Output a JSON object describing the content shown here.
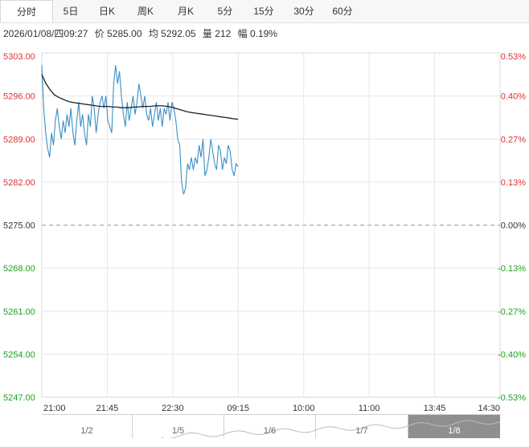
{
  "tabs": [
    {
      "label": "分时",
      "active": true
    },
    {
      "label": "5日",
      "active": false
    },
    {
      "label": "日K",
      "active": false
    },
    {
      "label": "周K",
      "active": false
    },
    {
      "label": "月K",
      "active": false
    },
    {
      "label": "5分",
      "active": false
    },
    {
      "label": "15分",
      "active": false
    },
    {
      "label": "30分",
      "active": false
    },
    {
      "label": "60分",
      "active": false
    }
  ],
  "info": {
    "datetime": "2026/01/08/四09:27",
    "price": "价 5285.00",
    "avg": "均 5292.05",
    "volume": "量 212",
    "change": "幅 0.19%"
  },
  "colors": {
    "price_line": "#3a8fc6",
    "avg_line": "#222222",
    "up": "#e03030",
    "down": "#1fa01f",
    "base": "#333333",
    "grid": "#e6e6e6"
  },
  "chart_data": {
    "type": "line",
    "reference_price": 5275.0,
    "ylim": [
      5247.0,
      5303.0
    ],
    "y_ticks": [
      "5303.00",
      "5296.00",
      "5289.00",
      "5282.00",
      "5275.00",
      "5268.00",
      "5261.00",
      "5254.00",
      "5247.00"
    ],
    "pct_ticks": [
      "0.53%",
      "0.40%",
      "0.27%",
      "0.13%",
      "0.00%",
      "-0.13%",
      "-0.27%",
      "-0.40%",
      "-0.53%"
    ],
    "x_ticks": [
      "21:00",
      "21:45",
      "22:30",
      "09:15",
      "10:00",
      "11:00",
      "13:45",
      "14:30"
    ],
    "series": [
      {
        "values": [
          5301,
          5294,
          5290,
          5287.5,
          5286,
          5290,
          5288,
          5292,
          5294,
          5291,
          5289,
          5292,
          5290,
          5293,
          5291,
          5294,
          5290,
          5288,
          5292,
          5295,
          5291,
          5293,
          5290,
          5288,
          5293,
          5291,
          5296,
          5294,
          5290,
          5293,
          5295,
          5296,
          5294,
          5296,
          5292,
          5291,
          5290,
          5298,
          5301,
          5298,
          5300,
          5296,
          5293,
          5291,
          5295,
          5292,
          5294,
          5296,
          5293,
          5295,
          5298,
          5296,
          5294,
          5296,
          5293,
          5292,
          5294,
          5291,
          5293,
          5295,
          5292,
          5294,
          5291,
          5294,
          5293,
          5295,
          5292,
          5295,
          5294,
          5292,
          5289,
          5288,
          5282,
          5280,
          5281,
          5285,
          5284,
          5286,
          5284,
          5286,
          5285,
          5288,
          5286,
          5289,
          5283,
          5284,
          5286,
          5289,
          5287,
          5285,
          5284,
          5288,
          5287,
          5284,
          5286,
          5285,
          5288,
          5287,
          5284,
          5283,
          5285,
          5284.5
        ]
      },
      {
        "values": [
          5299.5,
          5298,
          5297,
          5296.2,
          5295.8,
          5295.5,
          5295.2,
          5295,
          5294.9,
          5294.8,
          5294.7,
          5294.6,
          5294.5,
          5294.4,
          5294.3,
          5294.3,
          5294.3,
          5294.2,
          5294.2,
          5294.1,
          5294.1,
          5294.1,
          5294.2,
          5294.2,
          5294.3,
          5294.3,
          5294.3,
          5294.4,
          5294.4,
          5294.4,
          5294.3,
          5294.2,
          5294.0,
          5293.8,
          5293.6,
          5293.4,
          5293.3,
          5293.2,
          5293.1,
          5293.0,
          5292.9,
          5292.8,
          5292.7,
          5292.6,
          5292.5,
          5292.4,
          5292.3,
          5292.2
        ]
      }
    ]
  },
  "navigator": {
    "labels": [
      "1/2",
      "1/5",
      "1/6",
      "1/7",
      "1/8"
    ],
    "selected": "1/8"
  }
}
